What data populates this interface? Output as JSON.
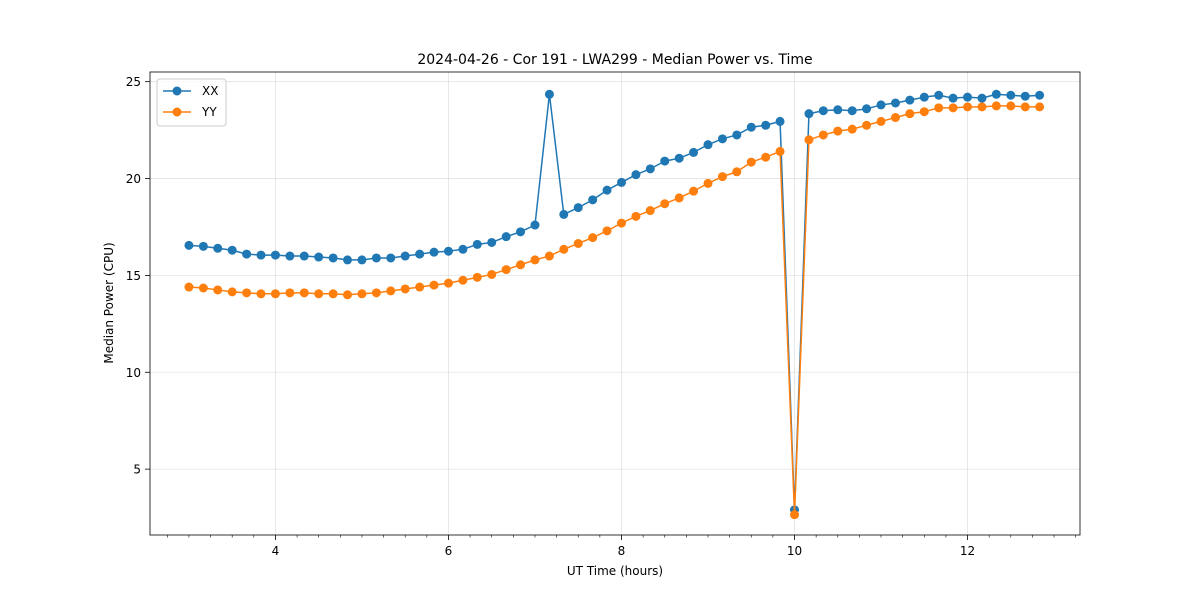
{
  "chart_data": {
    "type": "line",
    "title": "2024-04-26 - Cor 191 - LWA299 - Median Power vs. Time",
    "xlabel": "UT Time (hours)",
    "ylabel": "Median Power (CPU)",
    "xlim": [
      2.55,
      13.3
    ],
    "ylim": [
      1.6,
      25.5
    ],
    "xticks": [
      4,
      6,
      8,
      10,
      12
    ],
    "xtick_labels": [
      "4",
      "6",
      "8",
      "10",
      "12"
    ],
    "yticks": [
      5,
      10,
      15,
      20,
      25
    ],
    "ytick_labels": [
      "5",
      "10",
      "15",
      "20",
      "25"
    ],
    "grid": true,
    "legend_position": "top-left",
    "x": [
      3.0,
      3.167,
      3.333,
      3.5,
      3.667,
      3.833,
      4.0,
      4.167,
      4.333,
      4.5,
      4.667,
      4.833,
      5.0,
      5.167,
      5.333,
      5.5,
      5.667,
      5.833,
      6.0,
      6.167,
      6.333,
      6.5,
      6.667,
      6.833,
      7.0,
      7.167,
      7.333,
      7.5,
      7.667,
      7.833,
      8.0,
      8.167,
      8.333,
      8.5,
      8.667,
      8.833,
      9.0,
      9.167,
      9.333,
      9.5,
      9.667,
      9.833,
      10.0,
      10.167,
      10.333,
      10.5,
      10.667,
      10.833,
      11.0,
      11.167,
      11.333,
      11.5,
      11.667,
      11.833,
      12.0,
      12.167,
      12.333,
      12.5,
      12.667,
      12.833
    ],
    "series": [
      {
        "name": "XX",
        "color": "#1f77b4",
        "values": [
          16.55,
          16.5,
          16.4,
          16.3,
          16.1,
          16.05,
          16.05,
          16.0,
          16.0,
          15.95,
          15.9,
          15.8,
          15.8,
          15.9,
          15.9,
          16.0,
          16.1,
          16.2,
          16.25,
          16.35,
          16.6,
          16.7,
          17.0,
          17.25,
          17.6,
          24.35,
          18.15,
          18.5,
          18.9,
          19.4,
          19.8,
          20.2,
          20.5,
          20.9,
          21.05,
          21.35,
          21.75,
          22.05,
          22.25,
          22.65,
          22.75,
          22.95,
          2.9,
          23.35,
          23.5,
          23.55,
          23.5,
          23.6,
          23.8,
          23.9,
          24.05,
          24.2,
          24.3,
          24.15,
          24.2,
          24.15,
          24.35,
          24.3,
          24.25,
          24.3
        ]
      },
      {
        "name": "YY",
        "color": "#ff7f0e",
        "values": [
          14.4,
          14.35,
          14.25,
          14.15,
          14.1,
          14.05,
          14.05,
          14.1,
          14.1,
          14.05,
          14.05,
          14.0,
          14.05,
          14.1,
          14.2,
          14.3,
          14.4,
          14.5,
          14.6,
          14.75,
          14.9,
          15.05,
          15.3,
          15.55,
          15.8,
          16.0,
          16.35,
          16.65,
          16.95,
          17.3,
          17.7,
          18.05,
          18.35,
          18.7,
          19.0,
          19.35,
          19.75,
          20.1,
          20.35,
          20.85,
          21.1,
          21.4,
          2.65,
          22.0,
          22.25,
          22.45,
          22.55,
          22.75,
          22.95,
          23.15,
          23.35,
          23.45,
          23.65,
          23.65,
          23.7,
          23.7,
          23.75,
          23.75,
          23.7,
          23.7
        ]
      }
    ]
  }
}
